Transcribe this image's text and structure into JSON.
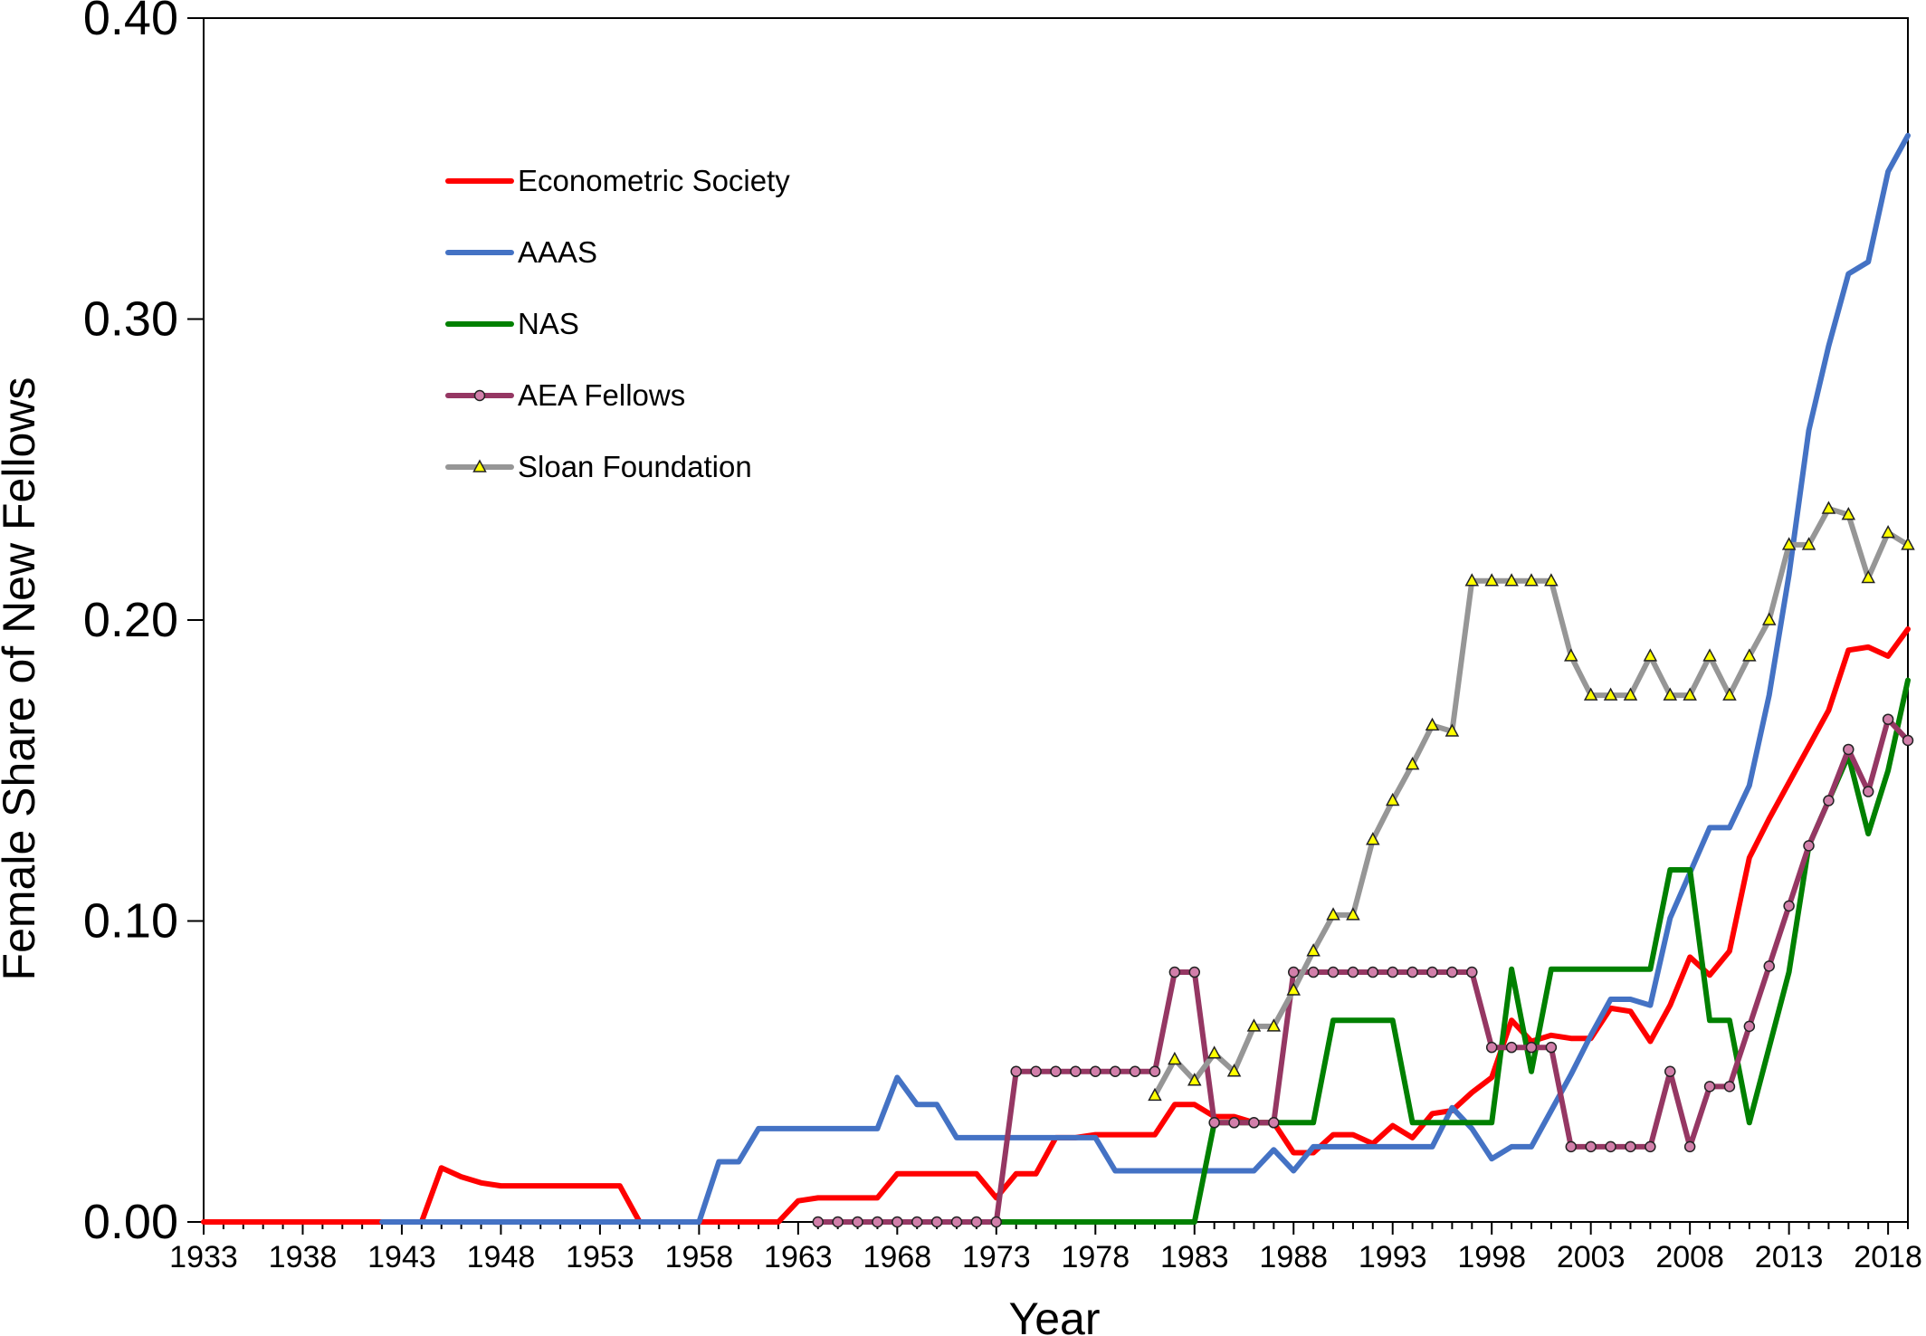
{
  "chart_data": {
    "type": "line",
    "xlabel": "Year",
    "ylabel": "Female Share of New Fellows",
    "xlim": [
      1933,
      2019
    ],
    "ylim": [
      0,
      0.4
    ],
    "yticks": [
      "0.00",
      "0.10",
      "0.20",
      "0.30",
      "0.40"
    ],
    "xticks": [
      "1933",
      "1938",
      "1943",
      "1948",
      "1953",
      "1958",
      "1963",
      "1968",
      "1973",
      "1978",
      "1983",
      "1988",
      "1993",
      "1998",
      "2003",
      "2008",
      "2013",
      "2018"
    ],
    "legend_position": "upper-left",
    "grid": false,
    "series": [
      {
        "name": "Econometric Society",
        "color": "#ff0000",
        "marker": "none",
        "x": [
          1933,
          1942,
          1943,
          1944,
          1945,
          1946,
          1947,
          1948,
          1949,
          1950,
          1951,
          1952,
          1953,
          1954,
          1955,
          1956,
          1957,
          1958,
          1959,
          1960,
          1961,
          1962,
          1963,
          1964,
          1965,
          1966,
          1967,
          1968,
          1969,
          1970,
          1971,
          1972,
          1973,
          1974,
          1975,
          1976,
          1977,
          1978,
          1979,
          1980,
          1981,
          1982,
          1983,
          1984,
          1985,
          1986,
          1987,
          1988,
          1989,
          1990,
          1991,
          1992,
          1993,
          1994,
          1995,
          1996,
          1997,
          1998,
          1999,
          2000,
          2001,
          2002,
          2003,
          2004,
          2005,
          2006,
          2007,
          2008,
          2009,
          2010,
          2011,
          2012,
          2013,
          2014,
          2015,
          2016,
          2017,
          2018,
          2019
        ],
        "values": [
          0,
          0,
          0,
          0,
          0.018,
          0.015,
          0.013,
          0.012,
          0.012,
          0.012,
          0.012,
          0.012,
          0.012,
          0.012,
          0,
          0,
          0,
          0,
          0,
          0,
          0,
          0,
          0.007,
          0.008,
          0.008,
          0.008,
          0.008,
          0.016,
          0.016,
          0.016,
          0.016,
          0.016,
          0.008,
          0.016,
          0.016,
          0.028,
          0.028,
          0.029,
          0.029,
          0.029,
          0.029,
          0.039,
          0.039,
          0.035,
          0.035,
          0.033,
          0.033,
          0.023,
          0.023,
          0.029,
          0.029,
          0.026,
          0.032,
          0.028,
          0.036,
          0.037,
          0.043,
          0.048,
          0.067,
          0.06,
          0.062,
          0.061,
          0.061,
          0.071,
          0.07,
          0.06,
          0.072,
          0.088,
          0.082,
          0.09,
          0.121,
          0.134,
          0.146,
          0.158,
          0.17,
          0.19,
          0.191,
          0.188,
          0.197
        ]
      },
      {
        "name": "AAAS",
        "color": "#4472c4",
        "marker": "none",
        "x": [
          1942,
          1943,
          1944,
          1945,
          1946,
          1947,
          1948,
          1949,
          1950,
          1951,
          1952,
          1953,
          1954,
          1955,
          1956,
          1957,
          1958,
          1959,
          1960,
          1961,
          1962,
          1963,
          1964,
          1965,
          1966,
          1967,
          1968,
          1969,
          1970,
          1971,
          1972,
          1973,
          1974,
          1975,
          1976,
          1977,
          1978,
          1979,
          1980,
          1981,
          1982,
          1983,
          1984,
          1985,
          1986,
          1987,
          1988,
          1989,
          1990,
          1991,
          1992,
          1993,
          1994,
          1995,
          1996,
          1997,
          1998,
          1999,
          2000,
          2001,
          2002,
          2003,
          2004,
          2005,
          2006,
          2007,
          2008,
          2009,
          2010,
          2011,
          2012,
          2013,
          2014,
          2015,
          2016,
          2017,
          2018,
          2019
        ],
        "values": [
          0,
          0,
          0,
          0,
          0,
          0,
          0,
          0,
          0,
          0,
          0,
          0,
          0,
          0,
          0,
          0,
          0,
          0.02,
          0.02,
          0.031,
          0.031,
          0.031,
          0.031,
          0.031,
          0.031,
          0.031,
          0.048,
          0.039,
          0.039,
          0.028,
          0.028,
          0.028,
          0.028,
          0.028,
          0.028,
          0.028,
          0.028,
          0.017,
          0.017,
          0.017,
          0.017,
          0.017,
          0.017,
          0.017,
          0.017,
          0.024,
          0.017,
          0.025,
          0.025,
          0.025,
          0.025,
          0.025,
          0.025,
          0.025,
          0.038,
          0.031,
          0.021,
          0.025,
          0.025,
          0.037,
          0.049,
          0.062,
          0.074,
          0.074,
          0.072,
          0.101,
          0.116,
          0.131,
          0.131,
          0.145,
          0.175,
          0.215,
          0.263,
          0.291,
          0.315,
          0.319,
          0.349,
          0.361
        ]
      },
      {
        "name": "NAS",
        "color": "#008000",
        "marker": "none",
        "x": [
          1973,
          1974,
          1975,
          1976,
          1977,
          1978,
          1979,
          1980,
          1981,
          1982,
          1983,
          1984,
          1985,
          1986,
          1987,
          1988,
          1989,
          1990,
          1991,
          1992,
          1993,
          1994,
          1995,
          1996,
          1997,
          1998,
          1999,
          2000,
          2001,
          2002,
          2003,
          2004,
          2005,
          2006,
          2007,
          2008,
          2009,
          2010,
          2011,
          2012,
          2013,
          2014,
          2015,
          2016,
          2017,
          2018,
          2019
        ],
        "values": [
          0,
          0,
          0,
          0,
          0,
          0,
          0,
          0,
          0,
          0,
          0,
          0.033,
          0.033,
          0.033,
          0.033,
          0.033,
          0.033,
          0.067,
          0.067,
          0.067,
          0.067,
          0.033,
          0.033,
          0.033,
          0.033,
          0.033,
          0.084,
          0.05,
          0.084,
          0.084,
          0.084,
          0.084,
          0.084,
          0.084,
          0.117,
          0.117,
          0.067,
          0.067,
          0.033,
          0.058,
          0.083,
          0.125,
          0.14,
          0.155,
          0.129,
          0.15,
          0.18
        ]
      },
      {
        "name": "AEA Fellows",
        "color": "#953763",
        "marker": "circle",
        "marker_fill": "#d27faa",
        "x": [
          1964,
          1965,
          1966,
          1967,
          1968,
          1969,
          1970,
          1971,
          1972,
          1973,
          1974,
          1975,
          1976,
          1977,
          1978,
          1979,
          1980,
          1981,
          1982,
          1983,
          1984,
          1985,
          1986,
          1987,
          1988,
          1989,
          1990,
          1991,
          1992,
          1993,
          1994,
          1995,
          1996,
          1997,
          1998,
          1999,
          2000,
          2001,
          2002,
          2003,
          2004,
          2005,
          2006,
          2007,
          2008,
          2009,
          2010,
          2011,
          2012,
          2013,
          2014,
          2015,
          2016,
          2017,
          2018,
          2019
        ],
        "values": [
          0,
          0,
          0,
          0,
          0,
          0,
          0,
          0,
          0,
          0,
          0.05,
          0.05,
          0.05,
          0.05,
          0.05,
          0.05,
          0.05,
          0.05,
          0.083,
          0.083,
          0.033,
          0.033,
          0.033,
          0.033,
          0.083,
          0.083,
          0.083,
          0.083,
          0.083,
          0.083,
          0.083,
          0.083,
          0.083,
          0.083,
          0.058,
          0.058,
          0.058,
          0.058,
          0.025,
          0.025,
          0.025,
          0.025,
          0.025,
          0.05,
          0.025,
          0.045,
          0.045,
          0.065,
          0.085,
          0.105,
          0.125,
          0.14,
          0.157,
          0.143,
          0.167,
          0.16
        ]
      },
      {
        "name": "Sloan Foundation",
        "color": "#969696",
        "marker": "triangle",
        "marker_fill": "#ffff00",
        "x": [
          1981,
          1982,
          1983,
          1984,
          1985,
          1986,
          1987,
          1988,
          1989,
          1990,
          1991,
          1992,
          1993,
          1994,
          1995,
          1996,
          1997,
          1998,
          1999,
          2000,
          2001,
          2002,
          2003,
          2004,
          2005,
          2006,
          2007,
          2008,
          2009,
          2010,
          2011,
          2012,
          2013,
          2014,
          2015,
          2016,
          2017,
          2018,
          2019
        ],
        "values": [
          0.042,
          0.054,
          0.047,
          0.056,
          0.05,
          0.065,
          0.065,
          0.077,
          0.09,
          0.102,
          0.102,
          0.127,
          0.14,
          0.152,
          0.165,
          0.163,
          0.213,
          0.213,
          0.213,
          0.213,
          0.213,
          0.188,
          0.175,
          0.175,
          0.175,
          0.188,
          0.175,
          0.175,
          0.188,
          0.175,
          0.188,
          0.2,
          0.225,
          0.225,
          0.237,
          0.235,
          0.214,
          0.229,
          0.225
        ]
      }
    ]
  }
}
